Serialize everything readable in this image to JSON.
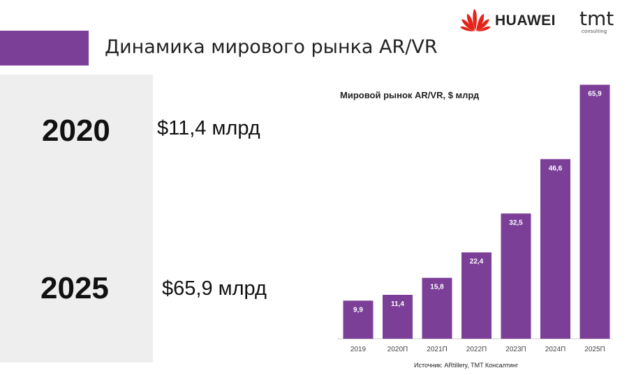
{
  "header": {
    "title": "Динамика мирового рынка AR/VR",
    "brand_huawei": "HUAWEI",
    "brand_tmt": "tmt",
    "brand_tmt_sub": "consulting"
  },
  "highlights": [
    {
      "year": "2020",
      "amount": "$11,4 млрд"
    },
    {
      "year": "2025",
      "amount": "$65,9 млрд"
    }
  ],
  "source": "Источник: ARtillery, TMT Консалтинг",
  "colors": {
    "accent": "#7b3f98",
    "bar": "#7b3f98",
    "huawei_red": "#e3241b",
    "panel": "#eeeeee"
  },
  "chart_data": {
    "type": "bar",
    "title": "Мировой рынок AR/VR, $ млрд",
    "categories": [
      "2019",
      "2020П",
      "2021П",
      "2022П",
      "2023П",
      "2024П",
      "2025П"
    ],
    "values": [
      9.9,
      11.4,
      15.8,
      22.4,
      32.5,
      46.6,
      65.9
    ],
    "value_labels": [
      "9,9",
      "11,4",
      "15,8",
      "22,4",
      "32,5",
      "46,6",
      "65,9"
    ],
    "xlabel": "",
    "ylabel": "",
    "ylim": [
      0,
      66
    ],
    "grid": false,
    "legend": "none"
  }
}
